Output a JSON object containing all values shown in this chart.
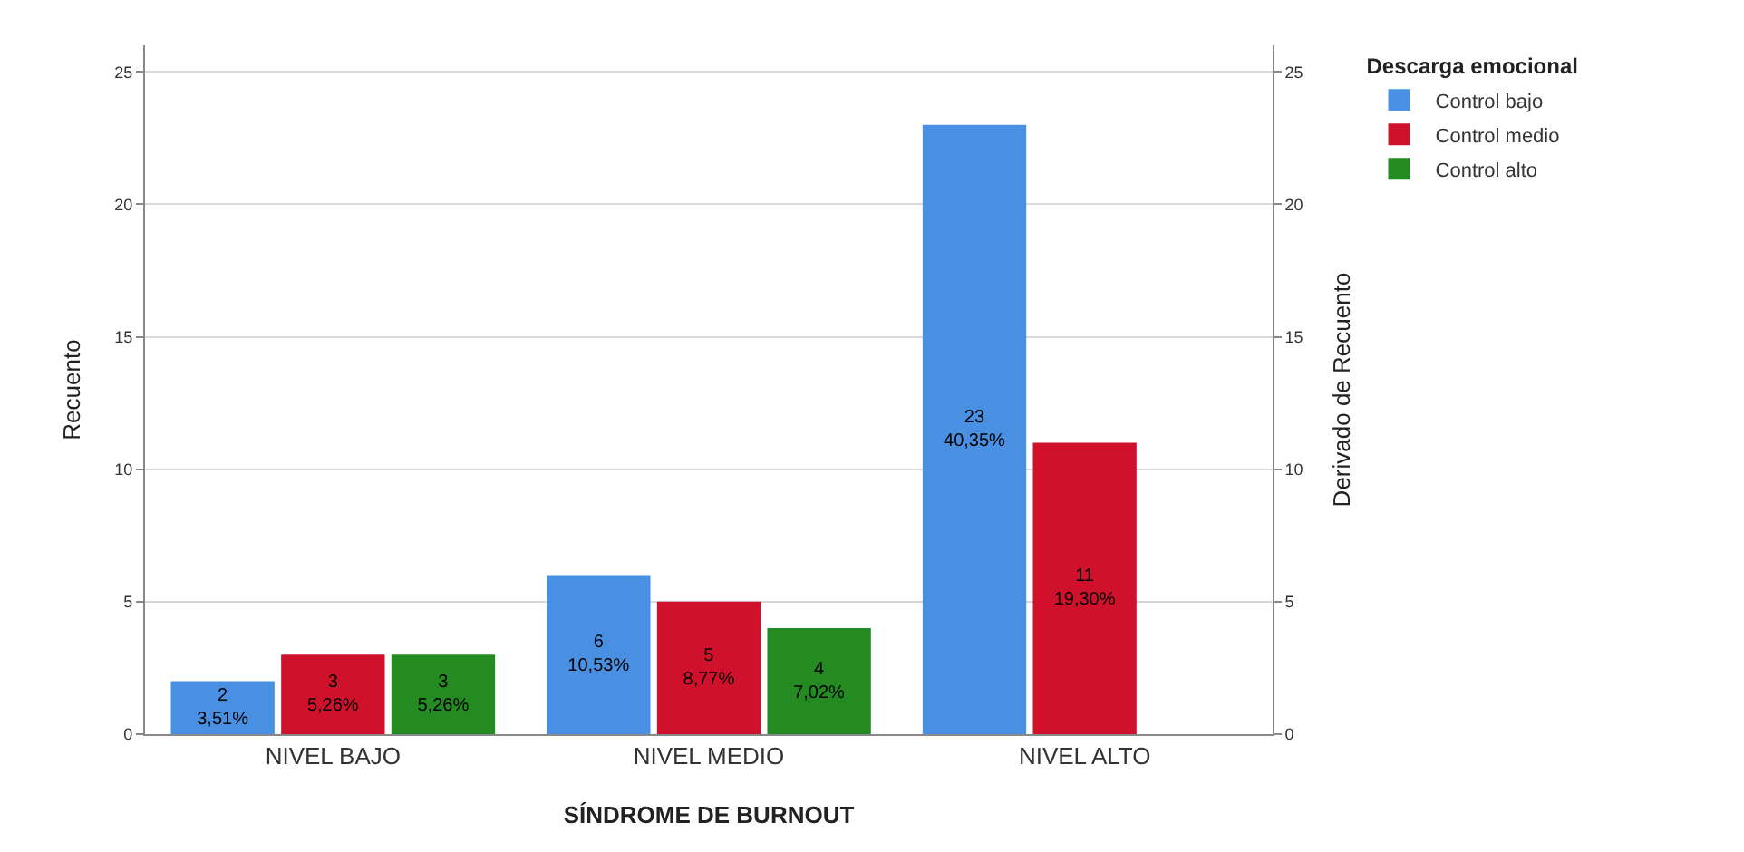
{
  "chart_data": {
    "type": "bar",
    "xlabel": "SÍNDROME DE BURNOUT",
    "ylabel": "Recuento",
    "y2label": "Derivado de Recuento",
    "legend_title": "Descarga emocional",
    "categories": [
      "NIVEL BAJO",
      "NIVEL MEDIO",
      "NIVEL ALTO"
    ],
    "series": [
      {
        "name": "Control bajo",
        "color": "#4a90e2",
        "values": [
          2,
          6,
          23
        ],
        "value_labels": [
          "2\n3,51%",
          "6\n10,53%",
          "23\n40,35%"
        ]
      },
      {
        "name": "Control medio",
        "color": "#d0112b",
        "values": [
          3,
          5,
          11
        ],
        "value_labels": [
          "3\n5,26%",
          "5\n8,77%",
          "11\n19,30%"
        ]
      },
      {
        "name": "Control alto",
        "color": "#238b21",
        "values": [
          3,
          4,
          null
        ],
        "value_labels": [
          "3\n5,26%",
          "4\n7,02%",
          null
        ]
      }
    ],
    "ylim": [
      0,
      26
    ],
    "yticks": [
      0,
      5,
      10,
      15,
      20,
      25
    ],
    "y2lim": [
      0,
      26
    ],
    "y2ticks": [
      0,
      5,
      10,
      15,
      20,
      25
    ],
    "grid": "y",
    "legend": "top right"
  }
}
